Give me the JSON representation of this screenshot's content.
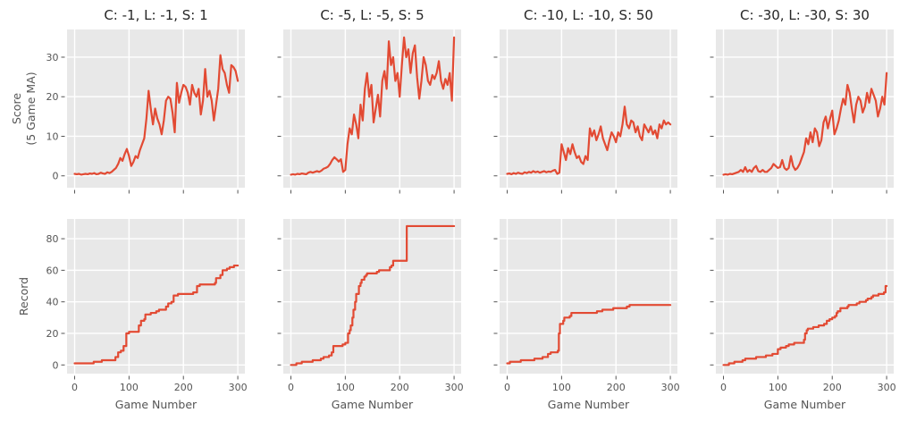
{
  "figure": {
    "background": "#ffffff",
    "plot_background": "#e8e8e8",
    "grid_color": "#ffffff",
    "line_color": "#e24a33",
    "tick_color": "#555555",
    "label_color": "#555555",
    "title_color": "#262626"
  },
  "chart_data": [
    {
      "type": "line",
      "row": 0,
      "col": 0,
      "title": "C: -1, L: -1, S: 1",
      "ylabel_lines": [
        "Score",
        "(5 Game MA)"
      ],
      "xlabel": null,
      "xlim": [
        -14,
        313
      ],
      "ylim": [
        -3,
        37
      ],
      "xticks": [
        0,
        100,
        200,
        300
      ],
      "yticks": [
        0,
        10,
        20,
        30
      ],
      "show_xtick_labels": false,
      "show_ytick_labels": true,
      "step": false,
      "grid": true,
      "legend": null,
      "x": [
        0,
        4,
        8,
        12,
        16,
        20,
        24,
        28,
        32,
        36,
        40,
        44,
        48,
        52,
        56,
        60,
        64,
        68,
        72,
        76,
        80,
        84,
        88,
        92,
        96,
        100,
        104,
        108,
        112,
        116,
        120,
        124,
        128,
        132,
        136,
        140,
        144,
        148,
        152,
        156,
        160,
        164,
        168,
        172,
        176,
        180,
        184,
        188,
        192,
        196,
        200,
        204,
        208,
        212,
        216,
        220,
        224,
        228,
        232,
        236,
        240,
        244,
        248,
        252,
        256,
        260,
        264,
        268,
        272,
        276,
        280,
        284,
        288,
        292,
        296,
        300
      ],
      "y": [
        0.5,
        0.4,
        0.5,
        0.3,
        0.4,
        0.5,
        0.4,
        0.6,
        0.5,
        0.7,
        0.4,
        0.5,
        0.8,
        0.6,
        0.5,
        0.9,
        0.7,
        1.0,
        1.5,
        2.0,
        3.0,
        4.5,
        3.8,
        5.5,
        6.8,
        5.0,
        2.5,
        3.5,
        5.0,
        4.5,
        6.5,
        8.0,
        9.5,
        14.5,
        21.5,
        17.0,
        13.0,
        17.0,
        14.5,
        13.0,
        10.5,
        14.0,
        19.0,
        20.0,
        19.5,
        16.0,
        11.0,
        23.5,
        18.5,
        21.0,
        23.0,
        22.5,
        21.0,
        18.0,
        23.0,
        21.0,
        20.0,
        22.0,
        15.5,
        19.0,
        27.0,
        20.0,
        21.5,
        19.0,
        14.0,
        18.0,
        22.0,
        30.5,
        27.0,
        26.0,
        23.0,
        21.0,
        28.0,
        27.5,
        26.5,
        24.0
      ]
    },
    {
      "type": "line",
      "row": 0,
      "col": 1,
      "title": "C: -5, L: -5, S: 5",
      "ylabel_lines": null,
      "xlabel": null,
      "xlim": [
        -14,
        313
      ],
      "ylim": [
        -3,
        37
      ],
      "xticks": [
        0,
        100,
        200,
        300
      ],
      "yticks": [
        0,
        10,
        20,
        30
      ],
      "show_xtick_labels": false,
      "show_ytick_labels": false,
      "step": false,
      "grid": true,
      "legend": null,
      "x": [
        0,
        4,
        8,
        12,
        16,
        20,
        24,
        28,
        32,
        36,
        40,
        44,
        48,
        52,
        56,
        60,
        64,
        68,
        72,
        76,
        80,
        84,
        88,
        92,
        96,
        100,
        104,
        108,
        112,
        116,
        120,
        124,
        128,
        132,
        136,
        140,
        144,
        148,
        152,
        156,
        160,
        164,
        168,
        172,
        176,
        180,
        184,
        188,
        192,
        196,
        200,
        204,
        208,
        212,
        216,
        220,
        224,
        228,
        232,
        236,
        240,
        244,
        248,
        252,
        256,
        260,
        264,
        268,
        272,
        276,
        280,
        284,
        288,
        292,
        296,
        300
      ],
      "y": [
        0.3,
        0.4,
        0.3,
        0.5,
        0.4,
        0.6,
        0.5,
        0.4,
        0.8,
        1.0,
        0.8,
        1.0,
        1.2,
        1.0,
        1.3,
        1.8,
        2.0,
        2.3,
        3.0,
        4.0,
        4.7,
        4.2,
        3.6,
        4.2,
        1.0,
        1.5,
        8.0,
        12.0,
        10.5,
        15.5,
        13.0,
        9.5,
        18.0,
        14.0,
        22.0,
        26.0,
        20.0,
        23.0,
        13.5,
        17.0,
        20.5,
        15.0,
        24.0,
        26.5,
        22.0,
        34.0,
        28.0,
        30.0,
        24.0,
        26.0,
        20.0,
        28.0,
        35.0,
        30.0,
        32.0,
        26.0,
        31.0,
        33.0,
        25.0,
        19.5,
        24.0,
        30.0,
        28.0,
        24.0,
        23.0,
        25.5,
        24.5,
        26.0,
        29.0,
        24.0,
        22.0,
        24.5,
        23.0,
        26.0,
        19.0,
        35.0
      ]
    },
    {
      "type": "line",
      "row": 0,
      "col": 2,
      "title": "C: -10, L: -10, S: 50",
      "ylabel_lines": null,
      "xlabel": null,
      "xlim": [
        -14,
        313
      ],
      "ylim": [
        -3,
        37
      ],
      "xticks": [
        0,
        100,
        200,
        300
      ],
      "yticks": [
        0,
        10,
        20,
        30
      ],
      "show_xtick_labels": false,
      "show_ytick_labels": false,
      "step": false,
      "grid": true,
      "legend": null,
      "x": [
        0,
        4,
        8,
        12,
        16,
        20,
        24,
        28,
        32,
        36,
        40,
        44,
        48,
        52,
        56,
        60,
        64,
        68,
        72,
        76,
        80,
        84,
        88,
        92,
        96,
        100,
        104,
        108,
        112,
        116,
        120,
        124,
        128,
        132,
        136,
        140,
        144,
        148,
        152,
        156,
        160,
        164,
        168,
        172,
        176,
        180,
        184,
        188,
        192,
        196,
        200,
        204,
        208,
        212,
        216,
        220,
        224,
        228,
        232,
        236,
        240,
        244,
        248,
        252,
        256,
        260,
        264,
        268,
        272,
        276,
        280,
        284,
        288,
        292,
        296,
        300
      ],
      "y": [
        0.5,
        0.6,
        0.4,
        0.7,
        0.5,
        0.8,
        0.6,
        0.5,
        0.9,
        0.7,
        1.0,
        0.8,
        1.2,
        0.9,
        1.1,
        0.8,
        1.0,
        1.2,
        0.9,
        1.1,
        1.0,
        1.3,
        1.5,
        0.5,
        0.8,
        8.0,
        6.0,
        4.0,
        7.0,
        5.5,
        8.0,
        6.0,
        4.5,
        5.0,
        3.5,
        3.0,
        5.0,
        4.0,
        12.0,
        10.0,
        11.5,
        9.0,
        10.5,
        12.5,
        9.5,
        8.0,
        6.5,
        9.0,
        11.0,
        10.0,
        8.5,
        11.0,
        10.0,
        13.0,
        17.5,
        13.0,
        12.0,
        14.0,
        13.5,
        11.0,
        12.5,
        10.0,
        9.0,
        13.0,
        12.0,
        11.0,
        12.5,
        10.5,
        11.5,
        9.5,
        13.0,
        12.0,
        14.0,
        13.0,
        13.5,
        13.0
      ]
    },
    {
      "type": "line",
      "row": 0,
      "col": 3,
      "title": "C: -30, L: -30, S: 30",
      "ylabel_lines": null,
      "xlabel": null,
      "xlim": [
        -14,
        313
      ],
      "ylim": [
        -3,
        37
      ],
      "xticks": [
        0,
        100,
        200,
        300
      ],
      "yticks": [
        0,
        10,
        20,
        30
      ],
      "show_xtick_labels": false,
      "show_ytick_labels": false,
      "step": false,
      "grid": true,
      "legend": null,
      "x": [
        0,
        4,
        8,
        12,
        16,
        20,
        24,
        28,
        32,
        36,
        40,
        44,
        48,
        52,
        56,
        60,
        64,
        68,
        72,
        76,
        80,
        84,
        88,
        92,
        96,
        100,
        104,
        108,
        112,
        116,
        120,
        124,
        128,
        132,
        136,
        140,
        144,
        148,
        152,
        156,
        160,
        164,
        168,
        172,
        176,
        180,
        184,
        188,
        192,
        196,
        200,
        204,
        208,
        212,
        216,
        220,
        224,
        228,
        232,
        236,
        240,
        244,
        248,
        252,
        256,
        260,
        264,
        268,
        272,
        276,
        280,
        284,
        288,
        292,
        296,
        300
      ],
      "y": [
        0.3,
        0.4,
        0.3,
        0.5,
        0.4,
        0.6,
        0.8,
        1.0,
        1.5,
        1.0,
        2.2,
        1.0,
        1.5,
        1.0,
        2.0,
        2.5,
        1.2,
        1.0,
        1.5,
        1.0,
        1.0,
        1.5,
        2.0,
        3.0,
        2.5,
        2.0,
        2.2,
        4.0,
        2.0,
        1.5,
        2.0,
        5.0,
        2.5,
        1.5,
        2.0,
        3.0,
        4.5,
        6.0,
        9.5,
        8.0,
        11.0,
        8.5,
        12.0,
        11.0,
        7.5,
        9.0,
        13.5,
        15.0,
        12.0,
        14.5,
        16.5,
        10.5,
        12.0,
        14.0,
        17.0,
        19.5,
        18.0,
        23.0,
        21.0,
        17.0,
        13.5,
        18.0,
        20.0,
        19.0,
        16.0,
        17.5,
        21.0,
        18.5,
        22.0,
        20.5,
        19.0,
        15.0,
        17.0,
        20.0,
        18.0,
        26.0
      ]
    },
    {
      "type": "line",
      "row": 1,
      "col": 0,
      "title": null,
      "ylabel_lines": [
        "Record"
      ],
      "xlabel": "Game Number",
      "xlim": [
        -14,
        313
      ],
      "ylim": [
        -5.5,
        92.5
      ],
      "xticks": [
        0,
        100,
        200,
        300
      ],
      "yticks": [
        0,
        20,
        40,
        60,
        80
      ],
      "show_xtick_labels": true,
      "show_ytick_labels": true,
      "step": true,
      "grid": true,
      "legend": null,
      "x": [
        0,
        30,
        35,
        45,
        50,
        70,
        75,
        80,
        85,
        90,
        95,
        100,
        113,
        118,
        122,
        128,
        130,
        140,
        150,
        155,
        165,
        168,
        172,
        178,
        182,
        190,
        215,
        218,
        225,
        230,
        255,
        258,
        260,
        268,
        272,
        278,
        280,
        285,
        293,
        300
      ],
      "y": [
        1,
        1,
        2,
        2,
        3,
        3,
        5,
        8,
        9,
        12,
        20,
        21,
        21,
        25,
        28,
        29,
        32,
        33,
        34,
        35,
        35,
        37,
        39,
        40,
        44,
        45,
        45,
        46,
        50,
        51,
        51,
        52,
        55,
        57,
        60,
        60,
        61,
        62,
        63,
        63
      ]
    },
    {
      "type": "line",
      "row": 1,
      "col": 1,
      "title": null,
      "ylabel_lines": null,
      "xlabel": "Game Number",
      "xlim": [
        -14,
        313
      ],
      "ylim": [
        -5.5,
        92.5
      ],
      "xticks": [
        0,
        100,
        200,
        300
      ],
      "yticks": [
        0,
        20,
        40,
        60,
        80
      ],
      "show_xtick_labels": true,
      "show_ytick_labels": false,
      "step": true,
      "grid": true,
      "legend": null,
      "x": [
        0,
        10,
        20,
        30,
        40,
        50,
        55,
        60,
        65,
        70,
        75,
        78,
        90,
        95,
        100,
        105,
        108,
        110,
        113,
        115,
        118,
        120,
        125,
        128,
        130,
        135,
        138,
        140,
        155,
        158,
        162,
        180,
        182,
        185,
        188,
        192,
        210,
        213,
        300
      ],
      "y": [
        0,
        1,
        2,
        2,
        3,
        3,
        4,
        5,
        5,
        6,
        8,
        12,
        12,
        13,
        14,
        20,
        22,
        25,
        30,
        35,
        40,
        45,
        50,
        52,
        54,
        56,
        57,
        58,
        58,
        59,
        60,
        60,
        62,
        63,
        66,
        66,
        66,
        88,
        88
      ]
    },
    {
      "type": "line",
      "row": 1,
      "col": 2,
      "title": null,
      "ylabel_lines": null,
      "xlabel": "Game Number",
      "xlim": [
        -14,
        313
      ],
      "ylim": [
        -5.5,
        92.5
      ],
      "xticks": [
        0,
        100,
        200,
        300
      ],
      "yticks": [
        0,
        20,
        40,
        60,
        80
      ],
      "show_xtick_labels": true,
      "show_ytick_labels": false,
      "step": true,
      "grid": true,
      "legend": null,
      "x": [
        0,
        5,
        20,
        25,
        40,
        50,
        60,
        65,
        75,
        80,
        90,
        93,
        95,
        97,
        103,
        105,
        115,
        118,
        160,
        165,
        172,
        175,
        190,
        195,
        215,
        220,
        225,
        300
      ],
      "y": [
        1,
        2,
        2,
        3,
        3,
        4,
        4,
        5,
        7,
        8,
        8,
        9,
        20,
        26,
        28,
        30,
        31,
        33,
        33,
        34,
        34,
        35,
        35,
        36,
        36,
        37,
        38,
        38
      ]
    },
    {
      "type": "line",
      "row": 1,
      "col": 3,
      "title": null,
      "ylabel_lines": null,
      "xlabel": "Game Number",
      "xlim": [
        -14,
        313
      ],
      "ylim": [
        -5.5,
        92.5
      ],
      "xticks": [
        0,
        100,
        200,
        300
      ],
      "yticks": [
        0,
        20,
        40,
        60,
        80
      ],
      "show_xtick_labels": true,
      "show_ytick_labels": false,
      "step": true,
      "grid": true,
      "legend": null,
      "x": [
        0,
        10,
        20,
        30,
        35,
        40,
        55,
        60,
        75,
        78,
        85,
        90,
        95,
        100,
        105,
        115,
        120,
        130,
        145,
        148,
        150,
        153,
        155,
        165,
        175,
        185,
        190,
        195,
        200,
        205,
        208,
        210,
        215,
        225,
        228,
        230,
        240,
        245,
        250,
        260,
        262,
        265,
        272,
        275,
        280,
        285,
        290,
        295,
        298,
        300
      ],
      "y": [
        0,
        1,
        2,
        2,
        3,
        4,
        4,
        5,
        5,
        6,
        6,
        7,
        7,
        10,
        11,
        12,
        13,
        14,
        14,
        16,
        20,
        22,
        23,
        24,
        25,
        26,
        28,
        29,
        30,
        31,
        33,
        34,
        36,
        36,
        37,
        38,
        38,
        39,
        40,
        40,
        41,
        42,
        43,
        44,
        44,
        45,
        45,
        46,
        50,
        50
      ]
    }
  ]
}
